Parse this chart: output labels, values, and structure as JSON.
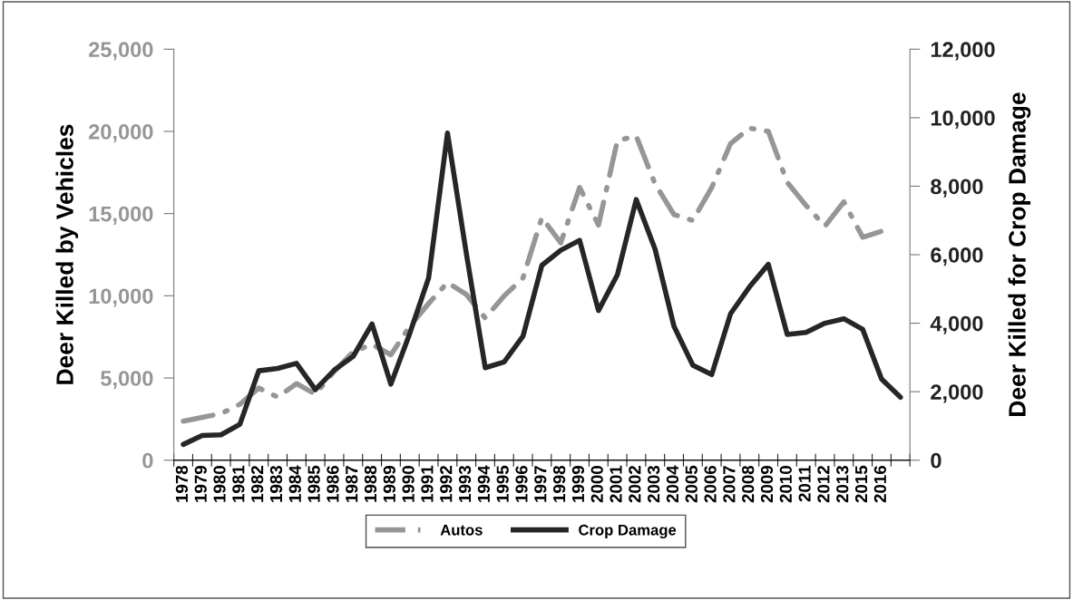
{
  "chart_data": {
    "type": "line",
    "ylabel": "Deer Killed by Vehicles",
    "y2label": "Deer Killed for Crop Damage",
    "categories": [
      "1978",
      "1979",
      "1980",
      "1981",
      "1982",
      "1983",
      "1984",
      "1985",
      "1986",
      "1987",
      "1988",
      "1989",
      "1990",
      "1991",
      "1992",
      "1993",
      "1994",
      "1995",
      "1996",
      "1997",
      "1998",
      "1999",
      "2000",
      "2001",
      "2002",
      "2003",
      "2004",
      "2005",
      "2006",
      "2007",
      "2008",
      "2009",
      "2010",
      "2011",
      "2012",
      "2013",
      "2015",
      "2016",
      null
    ],
    "series": [
      {
        "name": "Autos",
        "color": "#969696",
        "line_style": "dashdot",
        "values": [
          2370,
          2610,
          2830,
          3400,
          4390,
          3840,
          4660,
          4020,
          5400,
          6590,
          7050,
          6410,
          8150,
          9530,
          10810,
          10080,
          8650,
          9990,
          11090,
          14760,
          13220,
          16590,
          14300,
          19440,
          19720,
          16800,
          14940,
          14580,
          16590,
          19260,
          20200,
          20000,
          16900,
          15490,
          14240,
          15710,
          13560,
          13930,
          null
        ]
      },
      {
        "name": "Crop Damage",
        "color": "#262626",
        "axis": "y2",
        "line_style": "solid",
        "values": [
          460,
          720,
          740,
          1050,
          2610,
          2680,
          2830,
          2060,
          2630,
          3030,
          3980,
          2220,
          3700,
          5320,
          9550,
          6030,
          2700,
          2870,
          3620,
          5690,
          6130,
          6420,
          4370,
          5410,
          7610,
          6160,
          3910,
          2770,
          2500,
          4280,
          5060,
          5720,
          3670,
          3730,
          4000,
          4130,
          3820,
          2370,
          1840
        ]
      }
    ],
    "ylim": [
      0,
      25000
    ],
    "yticks": [
      {
        "value": 0,
        "label": "0"
      },
      {
        "value": 5000,
        "label": "5,000"
      },
      {
        "value": 10000,
        "label": "10,000"
      },
      {
        "value": 15000,
        "label": "15,000"
      },
      {
        "value": 20000,
        "label": "20,000"
      },
      {
        "value": 25000,
        "label": "25,000"
      }
    ],
    "y2lim": [
      0,
      12000
    ],
    "y2ticks": [
      {
        "value": 0,
        "label": "0"
      },
      {
        "value": 2000,
        "label": "2,000"
      },
      {
        "value": 4000,
        "label": "4,000"
      },
      {
        "value": 6000,
        "label": "6,000"
      },
      {
        "value": 8000,
        "label": "8,000"
      },
      {
        "value": 10000,
        "label": "10,000"
      },
      {
        "value": 12000,
        "label": "12,000"
      }
    ],
    "grid": false,
    "legend": "bottom"
  }
}
